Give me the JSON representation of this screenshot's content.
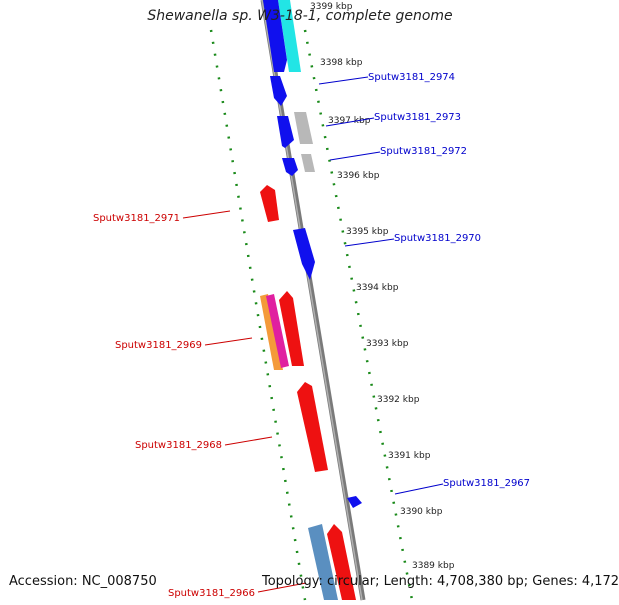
{
  "title": "Shewanella sp. W3-18-1, complete genome",
  "footer": {
    "accession": "Accession: NC_008750",
    "topology": "Topology: circular; Length: 4,708,380 bp; Genes: 4,172"
  },
  "colors": {
    "forward_gene": "#1010ee",
    "reverse_gene": "#ee1111",
    "rna": "#22e5e5",
    "pseudo": "#b8b8b8",
    "steel": "#5a8fc0",
    "orange": "#f49a3a",
    "magenta": "#e020a0",
    "backbone": "#808080",
    "ticks": "#1a8a1a",
    "forward_label": "#0000cc",
    "reverse_label": "#cc0000"
  },
  "scale_labels": [
    "3399 kbp",
    "3398 kbp",
    "3397 kbp",
    "3396 kbp",
    "3395 kbp",
    "3394 kbp",
    "3393 kbp",
    "3392 kbp",
    "3391 kbp",
    "3390 kbp",
    "3389 kbp"
  ],
  "gene_labels": {
    "forward": [
      "Sputw3181_2974",
      "Sputw3181_2973",
      "Sputw3181_2972",
      "Sputw3181_2970",
      "Sputw3181_2967"
    ],
    "reverse": [
      "Sputw3181_2971",
      "Sputw3181_2969",
      "Sputw3181_2968",
      "Sputw3181_2966"
    ]
  }
}
